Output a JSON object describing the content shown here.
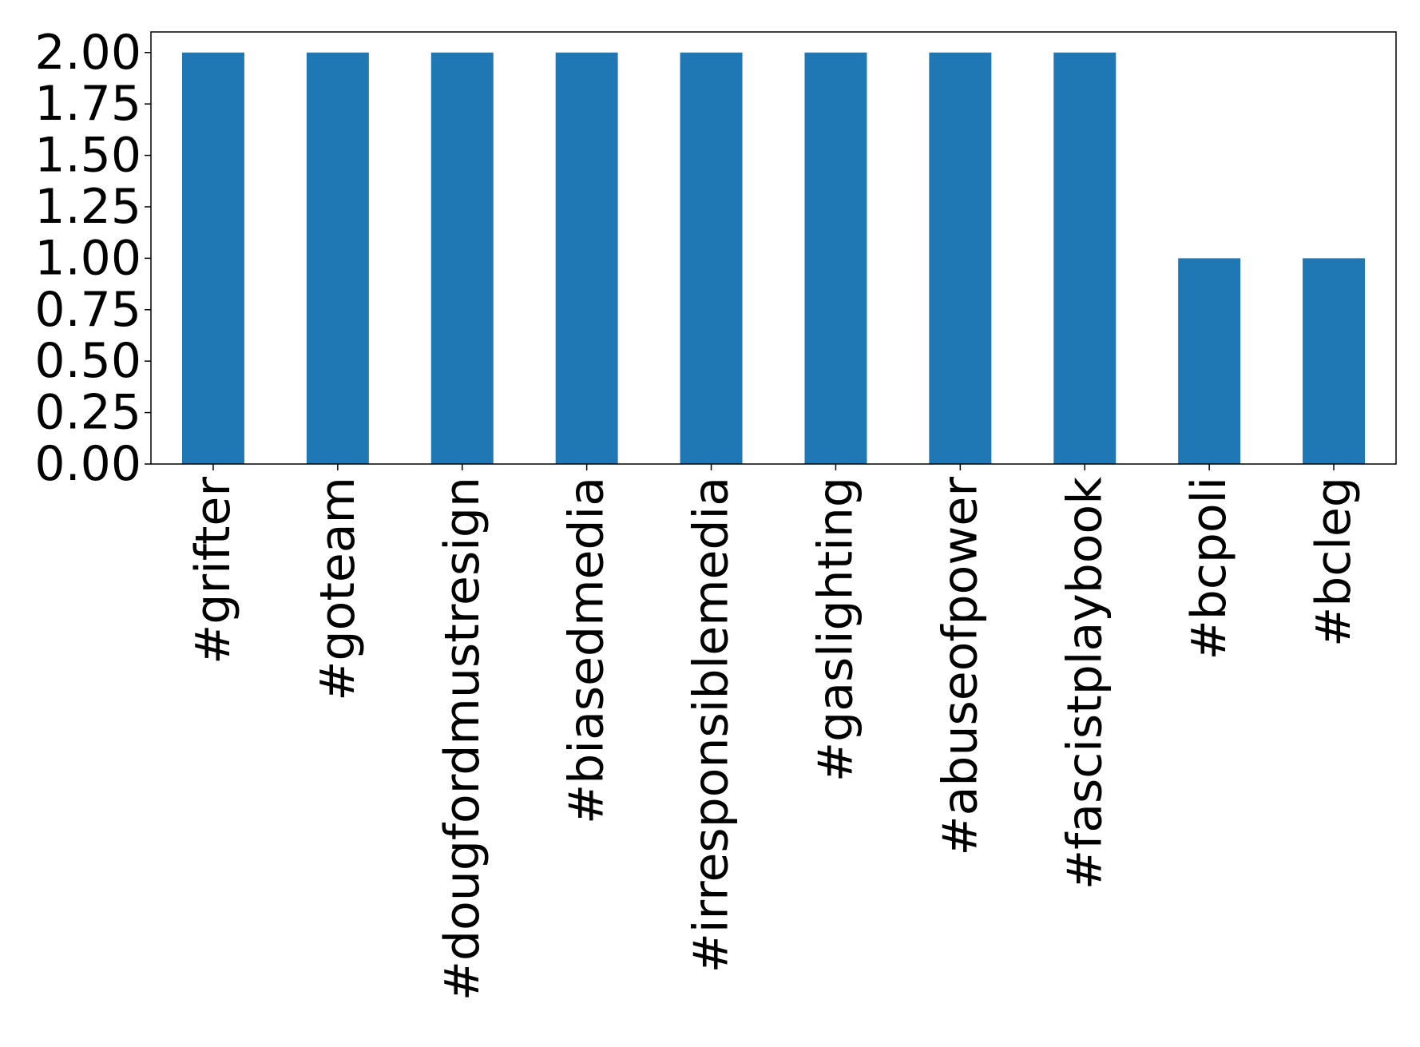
{
  "chart_data": {
    "type": "bar",
    "categories": [
      "#grifter",
      "#goteam",
      "#dougfordmustresign",
      "#biasedmedia",
      "#irresponsiblemedia",
      "#gaslighting",
      "#abuseofpower",
      "#fascistplaybook",
      "#bcpoli",
      "#bcleg"
    ],
    "values": [
      2,
      2,
      2,
      2,
      2,
      2,
      2,
      2,
      1,
      1
    ],
    "color": "#1f77b4",
    "ylim": [
      0,
      2.1
    ],
    "yticks": [
      {
        "value": 0,
        "label": "0.00"
      },
      {
        "value": 0.25,
        "label": "0.25"
      },
      {
        "value": 0.5,
        "label": "0.50"
      },
      {
        "value": 0.75,
        "label": "0.75"
      },
      {
        "value": 1,
        "label": "1.00"
      },
      {
        "value": 1.25,
        "label": "1.25"
      },
      {
        "value": 1.5,
        "label": "1.50"
      },
      {
        "value": 1.75,
        "label": "1.75"
      },
      {
        "value": 2,
        "label": "2.00"
      }
    ],
    "grid": false
  }
}
